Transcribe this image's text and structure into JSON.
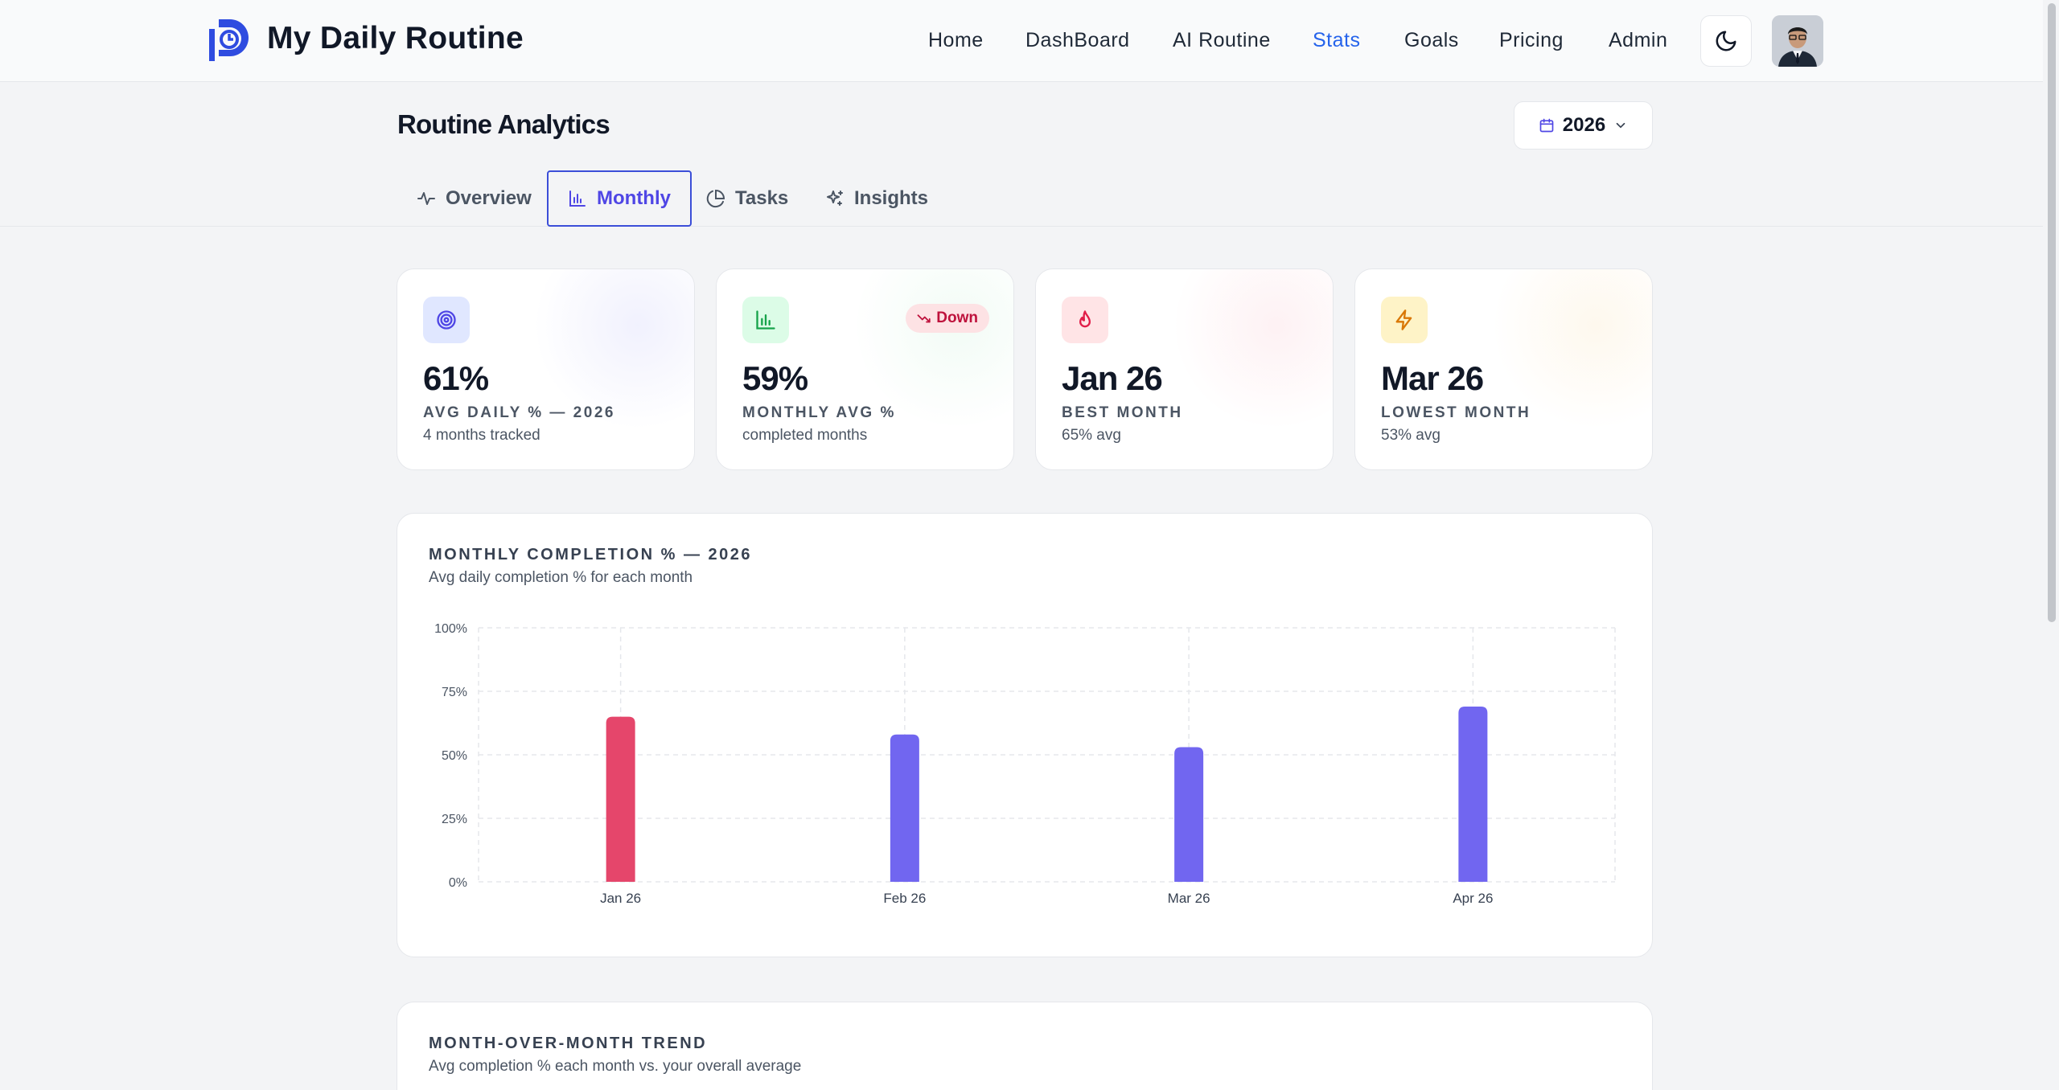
{
  "header": {
    "brand": "My Daily Routine",
    "nav": [
      {
        "label": "Home",
        "active": false
      },
      {
        "label": "DashBoard",
        "active": false
      },
      {
        "label": "AI Routine",
        "active": false
      },
      {
        "label": "Stats",
        "active": true
      },
      {
        "label": "Goals",
        "active": false
      },
      {
        "label": "Pricing",
        "active": false
      },
      {
        "label": "Admin",
        "active": false
      }
    ],
    "theme_icon": "moon-icon",
    "accent": "#2563eb"
  },
  "page": {
    "title": "Routine Analytics",
    "year": "2026"
  },
  "tabs": [
    {
      "label": "Overview",
      "icon": "activity-icon",
      "active": false
    },
    {
      "label": "Monthly",
      "icon": "bar-chart-icon",
      "active": true
    },
    {
      "label": "Tasks",
      "icon": "pie-chart-icon",
      "active": false
    },
    {
      "label": "Insights",
      "icon": "sparkles-icon",
      "active": false
    }
  ],
  "stats": [
    {
      "value": "61%",
      "label": "AVG DAILY % — 2026",
      "sub": "4 months tracked",
      "icon": "target-icon",
      "color": "#4f46e5"
    },
    {
      "value": "59%",
      "label": "MONTHLY AVG %",
      "sub": "completed months",
      "icon": "bar-chart-icon",
      "color": "#16a34a",
      "badge": "Down"
    },
    {
      "value": "Jan 26",
      "label": "BEST MONTH",
      "sub": "65% avg",
      "icon": "flame-icon",
      "color": "#e11d48"
    },
    {
      "value": "Mar 26",
      "label": "LOWEST MONTH",
      "sub": "53% avg",
      "icon": "zap-icon",
      "color": "#d97706"
    }
  ],
  "monthly_chart": {
    "title": "MONTHLY COMPLETION % — 2026",
    "subtitle": "Avg daily completion % for each month"
  },
  "trend_panel": {
    "title": "MONTH-OVER-MONTH TREND",
    "subtitle": "Avg completion % each month vs. your overall average"
  },
  "chart_data": {
    "type": "bar",
    "title": "MONTHLY COMPLETION % — 2026",
    "subtitle": "Avg daily completion % for each month",
    "categories": [
      "Jan 26",
      "Feb 26",
      "Mar 26",
      "Apr 26"
    ],
    "values": [
      65,
      58,
      53,
      69
    ],
    "highlight_index": 0,
    "highlight_color": "#e5466b",
    "bar_color": "#7166f0",
    "ylim": [
      0,
      100
    ],
    "yticks": [
      "0%",
      "25%",
      "50%",
      "75%",
      "100%"
    ],
    "ytick_values": [
      0,
      25,
      50,
      75,
      100
    ],
    "grid": true,
    "xlabel": "",
    "ylabel": ""
  }
}
